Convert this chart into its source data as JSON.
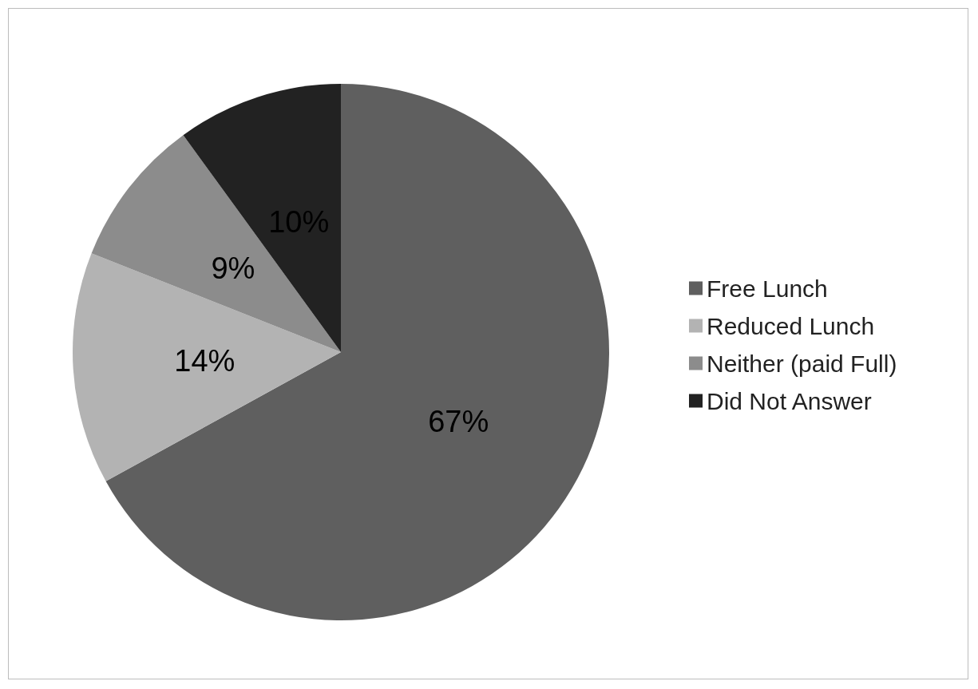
{
  "chart_data": {
    "type": "pie",
    "categories": [
      "Free Lunch",
      "Reduced Lunch",
      "Neither (paid Full)",
      "Did Not Answer"
    ],
    "values": [
      67,
      14,
      9,
      10
    ],
    "colors": [
      "#5f5f5f",
      "#b3b3b3",
      "#8c8c8c",
      "#222222"
    ],
    "value_labels": [
      "67%",
      "14%",
      "9%",
      "10%"
    ],
    "legend": "right"
  }
}
